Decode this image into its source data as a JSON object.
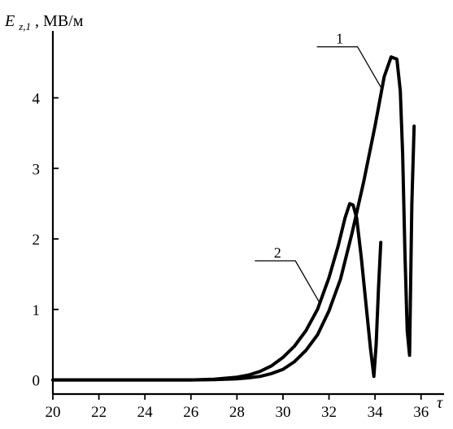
{
  "chart_data": {
    "type": "line",
    "title": "",
    "xlabel": "τ",
    "ylabel_main": "E",
    "ylabel_sub": "z,1",
    "ylabel_unit": ", МВ/м",
    "xlim": [
      20,
      37
    ],
    "ylim": [
      -0.2,
      4.95
    ],
    "xticks": [
      20,
      22,
      24,
      26,
      28,
      30,
      32,
      34,
      36
    ],
    "yticks": [
      0,
      1,
      2,
      3,
      4
    ],
    "grid": false,
    "series": [
      {
        "name": "1",
        "x": [
          20,
          26,
          27,
          28,
          28.5,
          29,
          29.5,
          30,
          30.5,
          31,
          31.5,
          32,
          32.5,
          33,
          33.5,
          34,
          34.4,
          34.7,
          34.95,
          35.1,
          35.2,
          35.3,
          35.4,
          35.5,
          35.6,
          35.7
        ],
        "y": [
          0,
          0,
          0.005,
          0.015,
          0.03,
          0.05,
          0.09,
          0.15,
          0.26,
          0.42,
          0.64,
          0.98,
          1.43,
          2.08,
          2.8,
          3.6,
          4.3,
          4.58,
          4.55,
          4.1,
          3.2,
          1.8,
          0.7,
          0.35,
          2.5,
          3.6
        ]
      },
      {
        "name": "2",
        "x": [
          20,
          26,
          27,
          28,
          28.5,
          29,
          29.5,
          30,
          30.5,
          31,
          31.5,
          32,
          32.4,
          32.7,
          32.9,
          33.05,
          33.2,
          33.4,
          33.6,
          33.8,
          33.95,
          34.05,
          34.15,
          34.25
        ],
        "y": [
          0,
          0,
          0.01,
          0.04,
          0.07,
          0.12,
          0.2,
          0.32,
          0.48,
          0.7,
          1.0,
          1.45,
          1.9,
          2.3,
          2.5,
          2.48,
          2.3,
          1.75,
          1.1,
          0.45,
          0.05,
          0.5,
          1.3,
          1.95
        ]
      }
    ],
    "curve_labels": [
      {
        "text": "1",
        "series": 0,
        "at_x": 34.3
      },
      {
        "text": "2",
        "series": 1,
        "at_x": 31.6
      }
    ]
  }
}
